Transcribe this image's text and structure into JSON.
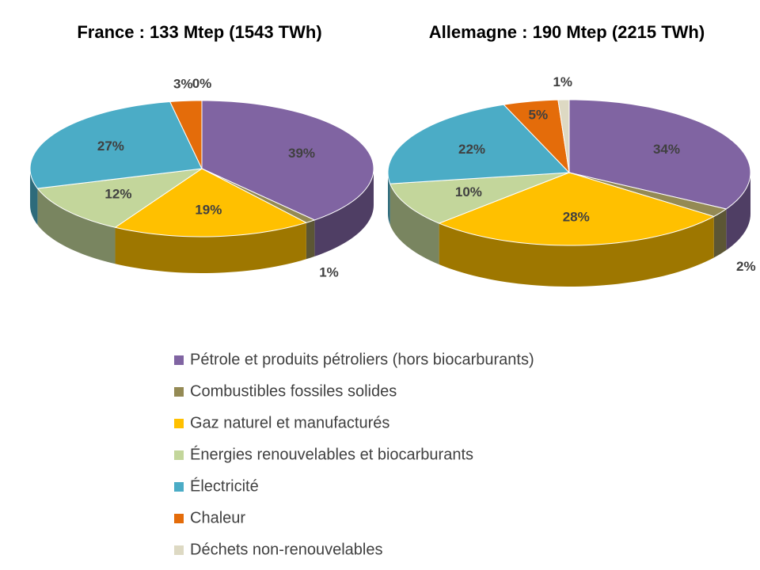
{
  "legend": {
    "categories": [
      "Pétrole et produits pétroliers (hors biocarburants)",
      "Combustibles fossiles solides",
      "Gaz naturel et manufacturés",
      "Énergies renouvelables et biocarburants",
      "Électricité",
      "Chaleur",
      "Déchets non-renouvelables"
    ],
    "colors": [
      "#8064a2",
      "#948a54",
      "#ffc000",
      "#c3d69b",
      "#4bacc6",
      "#e46c0a",
      "#ddd9c3"
    ]
  },
  "chart_data": [
    {
      "type": "pie",
      "title": "France : 133 Mtep (1543 TWh)",
      "values": [
        39,
        1,
        19,
        12,
        27,
        3,
        0
      ],
      "value_labels": [
        "39%",
        "1%",
        "19%",
        "12%",
        "27%",
        "3%",
        "0%"
      ]
    },
    {
      "type": "pie",
      "title": "Allemagne : 190 Mtep (2215 TWh)",
      "values": [
        34,
        2,
        28,
        10,
        22,
        5,
        1
      ],
      "value_labels": [
        "34%",
        "2%",
        "28%",
        "10%",
        "22%",
        "5%",
        "1%"
      ]
    }
  ]
}
